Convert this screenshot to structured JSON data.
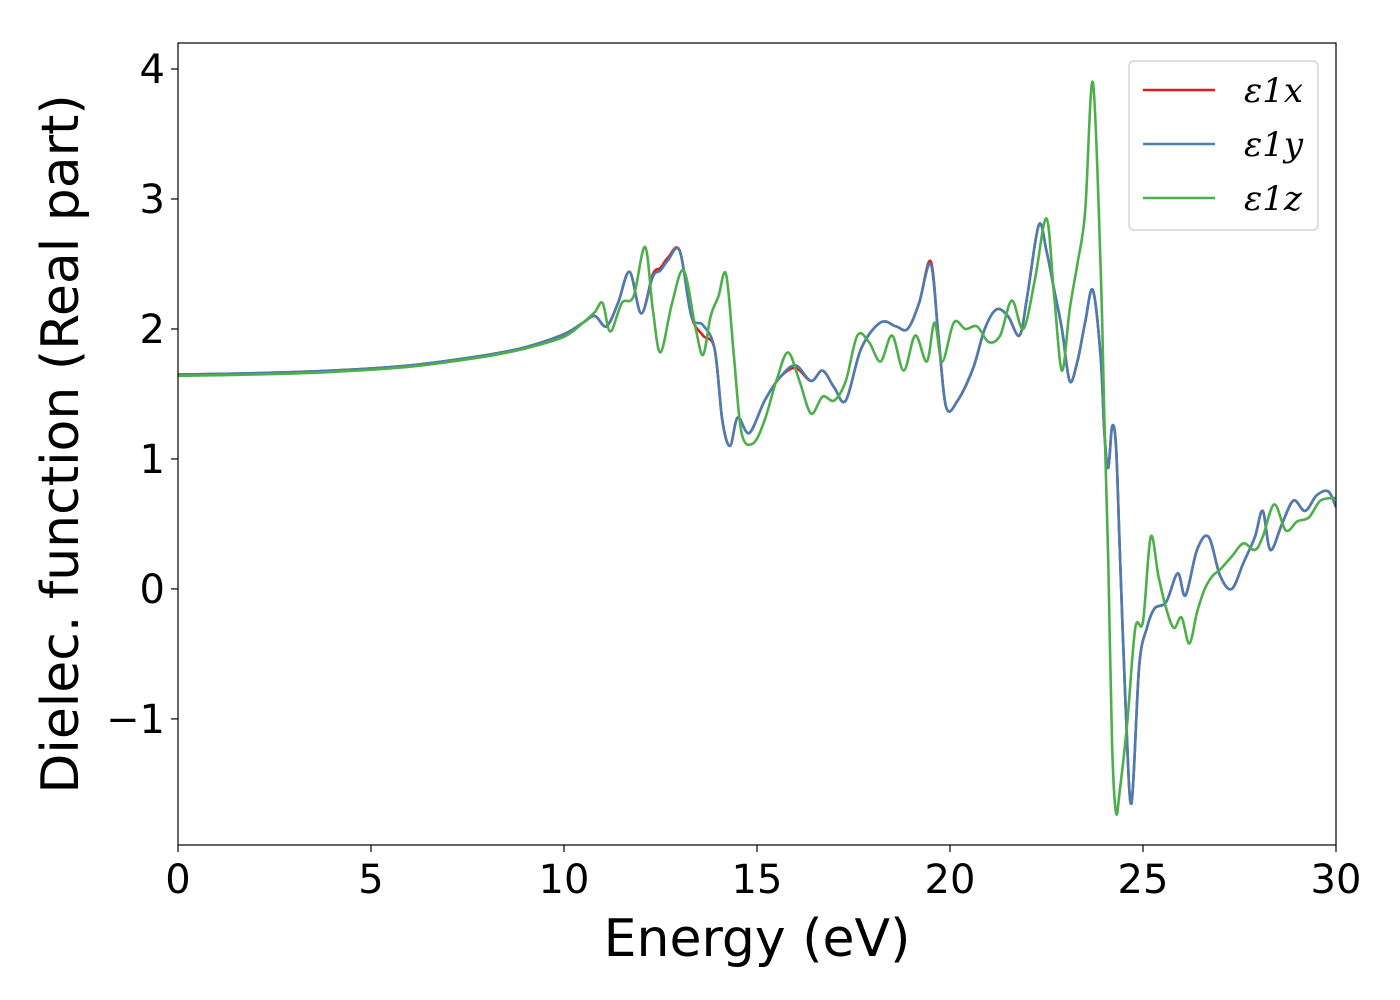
{
  "chart_data": {
    "type": "line",
    "title": "",
    "xlabel": "Energy (eV)",
    "ylabel": "Dielec. function (Real part)",
    "xlim": [
      0,
      30
    ],
    "ylim": [
      -1.97,
      4.2
    ],
    "xticks": [
      0,
      5,
      10,
      15,
      20,
      25,
      30
    ],
    "xtick_labels": [
      "0",
      "5",
      "10",
      "15",
      "20",
      "25",
      "30"
    ],
    "yticks": [
      -1,
      0,
      1,
      2,
      3,
      4
    ],
    "ytick_labels": [
      "−1",
      "0",
      "1",
      "2",
      "3",
      "4"
    ],
    "grid": false,
    "legend_position": "top-right",
    "series": [
      {
        "name": "ε1x",
        "color": "#e41a1c",
        "x": [
          0,
          2,
          4,
          6,
          8,
          9,
          10,
          10.5,
          10.8,
          11.1,
          11.4,
          11.7,
          12.0,
          12.3,
          12.5,
          12.7,
          13.0,
          13.3,
          13.6,
          13.9,
          14.1,
          14.3,
          14.5,
          14.8,
          15.2,
          15.6,
          16.0,
          16.4,
          16.7,
          17.0,
          17.3,
          17.7,
          18.2,
          18.6,
          18.9,
          19.2,
          19.5,
          19.7,
          19.9,
          20.2,
          20.6,
          20.9,
          21.2,
          21.5,
          21.8,
          22.0,
          22.3,
          22.5,
          22.7,
          22.9,
          23.1,
          23.3,
          23.5,
          23.7,
          23.9,
          24.0,
          24.1,
          24.2,
          24.3,
          24.4,
          24.55,
          24.7,
          24.9,
          25.1,
          25.3,
          25.6,
          25.9,
          26.1,
          26.4,
          26.7,
          27.0,
          27.3,
          27.6,
          27.9,
          28.1,
          28.3,
          28.6,
          28.9,
          29.2,
          29.5,
          29.8,
          30.0
        ],
        "y": [
          1.65,
          1.66,
          1.68,
          1.72,
          1.8,
          1.86,
          1.96,
          2.05,
          2.1,
          2.02,
          2.2,
          2.44,
          2.12,
          2.42,
          2.47,
          2.55,
          2.6,
          2.1,
          1.95,
          1.85,
          1.3,
          1.1,
          1.32,
          1.2,
          1.45,
          1.63,
          1.7,
          1.6,
          1.68,
          1.55,
          1.45,
          1.85,
          2.05,
          2.02,
          2.0,
          2.2,
          2.52,
          1.95,
          1.4,
          1.45,
          1.7,
          2.0,
          2.15,
          2.1,
          1.95,
          2.25,
          2.8,
          2.6,
          2.3,
          2.0,
          1.6,
          1.75,
          2.05,
          2.3,
          1.8,
          1.2,
          0.93,
          1.25,
          1.1,
          0.3,
          -0.9,
          -1.65,
          -0.6,
          -0.3,
          -0.15,
          -0.1,
          0.12,
          -0.05,
          0.3,
          0.4,
          0.1,
          0.0,
          0.2,
          0.4,
          0.6,
          0.3,
          0.5,
          0.68,
          0.6,
          0.72,
          0.75,
          0.63
        ]
      },
      {
        "name": "ε1y",
        "color": "#4a7eb3",
        "x": [
          0,
          2,
          4,
          6,
          8,
          9,
          10,
          10.5,
          10.8,
          11.1,
          11.4,
          11.7,
          12.0,
          12.3,
          12.5,
          12.7,
          13.0,
          13.3,
          13.6,
          13.9,
          14.1,
          14.3,
          14.5,
          14.8,
          15.2,
          15.6,
          16.0,
          16.4,
          16.7,
          17.0,
          17.3,
          17.7,
          18.2,
          18.6,
          18.9,
          19.2,
          19.5,
          19.7,
          19.9,
          20.2,
          20.6,
          20.9,
          21.2,
          21.5,
          21.8,
          22.0,
          22.3,
          22.5,
          22.7,
          22.9,
          23.1,
          23.3,
          23.5,
          23.7,
          23.9,
          24.0,
          24.1,
          24.2,
          24.3,
          24.4,
          24.55,
          24.7,
          24.9,
          25.1,
          25.3,
          25.6,
          25.9,
          26.1,
          26.4,
          26.7,
          27.0,
          27.3,
          27.6,
          27.9,
          28.1,
          28.3,
          28.6,
          28.9,
          29.2,
          29.5,
          29.8,
          30.0
        ],
        "y": [
          1.65,
          1.66,
          1.68,
          1.72,
          1.8,
          1.86,
          1.96,
          2.05,
          2.1,
          2.02,
          2.2,
          2.44,
          2.12,
          2.4,
          2.45,
          2.53,
          2.6,
          2.1,
          2.03,
          1.85,
          1.3,
          1.1,
          1.32,
          1.2,
          1.45,
          1.63,
          1.72,
          1.6,
          1.68,
          1.55,
          1.45,
          1.85,
          2.05,
          2.02,
          2.0,
          2.2,
          2.5,
          1.95,
          1.4,
          1.45,
          1.7,
          2.0,
          2.15,
          2.1,
          1.95,
          2.25,
          2.8,
          2.6,
          2.3,
          2.0,
          1.6,
          1.75,
          2.05,
          2.3,
          1.8,
          1.2,
          0.93,
          1.25,
          1.1,
          0.3,
          -0.9,
          -1.65,
          -0.6,
          -0.3,
          -0.15,
          -0.1,
          0.12,
          -0.05,
          0.3,
          0.4,
          0.1,
          0.0,
          0.2,
          0.4,
          0.6,
          0.3,
          0.5,
          0.68,
          0.6,
          0.72,
          0.75,
          0.63
        ]
      },
      {
        "name": "ε1z",
        "color": "#4daf4a",
        "x": [
          0,
          2,
          4,
          6,
          8,
          9,
          10,
          10.5,
          10.8,
          11.0,
          11.2,
          11.5,
          11.8,
          12.1,
          12.3,
          12.5,
          12.8,
          13.1,
          13.4,
          13.6,
          13.8,
          14.0,
          14.2,
          14.4,
          14.6,
          14.9,
          15.2,
          15.5,
          15.8,
          16.1,
          16.4,
          16.7,
          17.0,
          17.3,
          17.6,
          17.9,
          18.2,
          18.5,
          18.8,
          19.1,
          19.4,
          19.6,
          19.8,
          20.1,
          20.4,
          20.7,
          21.0,
          21.3,
          21.6,
          21.9,
          22.2,
          22.5,
          22.7,
          22.9,
          23.1,
          23.3,
          23.5,
          23.7,
          23.9,
          24.0,
          24.1,
          24.2,
          24.3,
          24.4,
          24.6,
          24.8,
          25.0,
          25.2,
          25.4,
          25.6,
          25.8,
          26.0,
          26.2,
          26.4,
          26.6,
          26.8,
          27.0,
          27.3,
          27.6,
          27.9,
          28.1,
          28.4,
          28.7,
          29.0,
          29.3,
          29.6,
          30.0
        ],
        "y": [
          1.64,
          1.65,
          1.67,
          1.71,
          1.79,
          1.85,
          1.94,
          2.05,
          2.13,
          2.2,
          1.98,
          2.2,
          2.25,
          2.63,
          2.15,
          1.82,
          2.2,
          2.45,
          2.02,
          1.8,
          2.1,
          2.25,
          2.42,
          1.8,
          1.2,
          1.12,
          1.3,
          1.6,
          1.82,
          1.6,
          1.35,
          1.48,
          1.45,
          1.6,
          1.95,
          1.9,
          1.75,
          1.95,
          1.68,
          1.95,
          1.75,
          2.05,
          1.75,
          2.05,
          2.0,
          2.02,
          1.9,
          1.95,
          2.22,
          2.0,
          2.38,
          2.85,
          2.25,
          1.68,
          2.15,
          2.5,
          2.9,
          3.9,
          2.5,
          1.3,
          0.2,
          -1.2,
          -1.72,
          -1.55,
          -1.0,
          -0.3,
          -0.25,
          0.4,
          0.1,
          -0.15,
          -0.3,
          -0.22,
          -0.42,
          -0.18,
          0.0,
          0.1,
          0.15,
          0.25,
          0.35,
          0.3,
          0.4,
          0.65,
          0.45,
          0.52,
          0.55,
          0.68,
          0.7
        ]
      }
    ]
  }
}
